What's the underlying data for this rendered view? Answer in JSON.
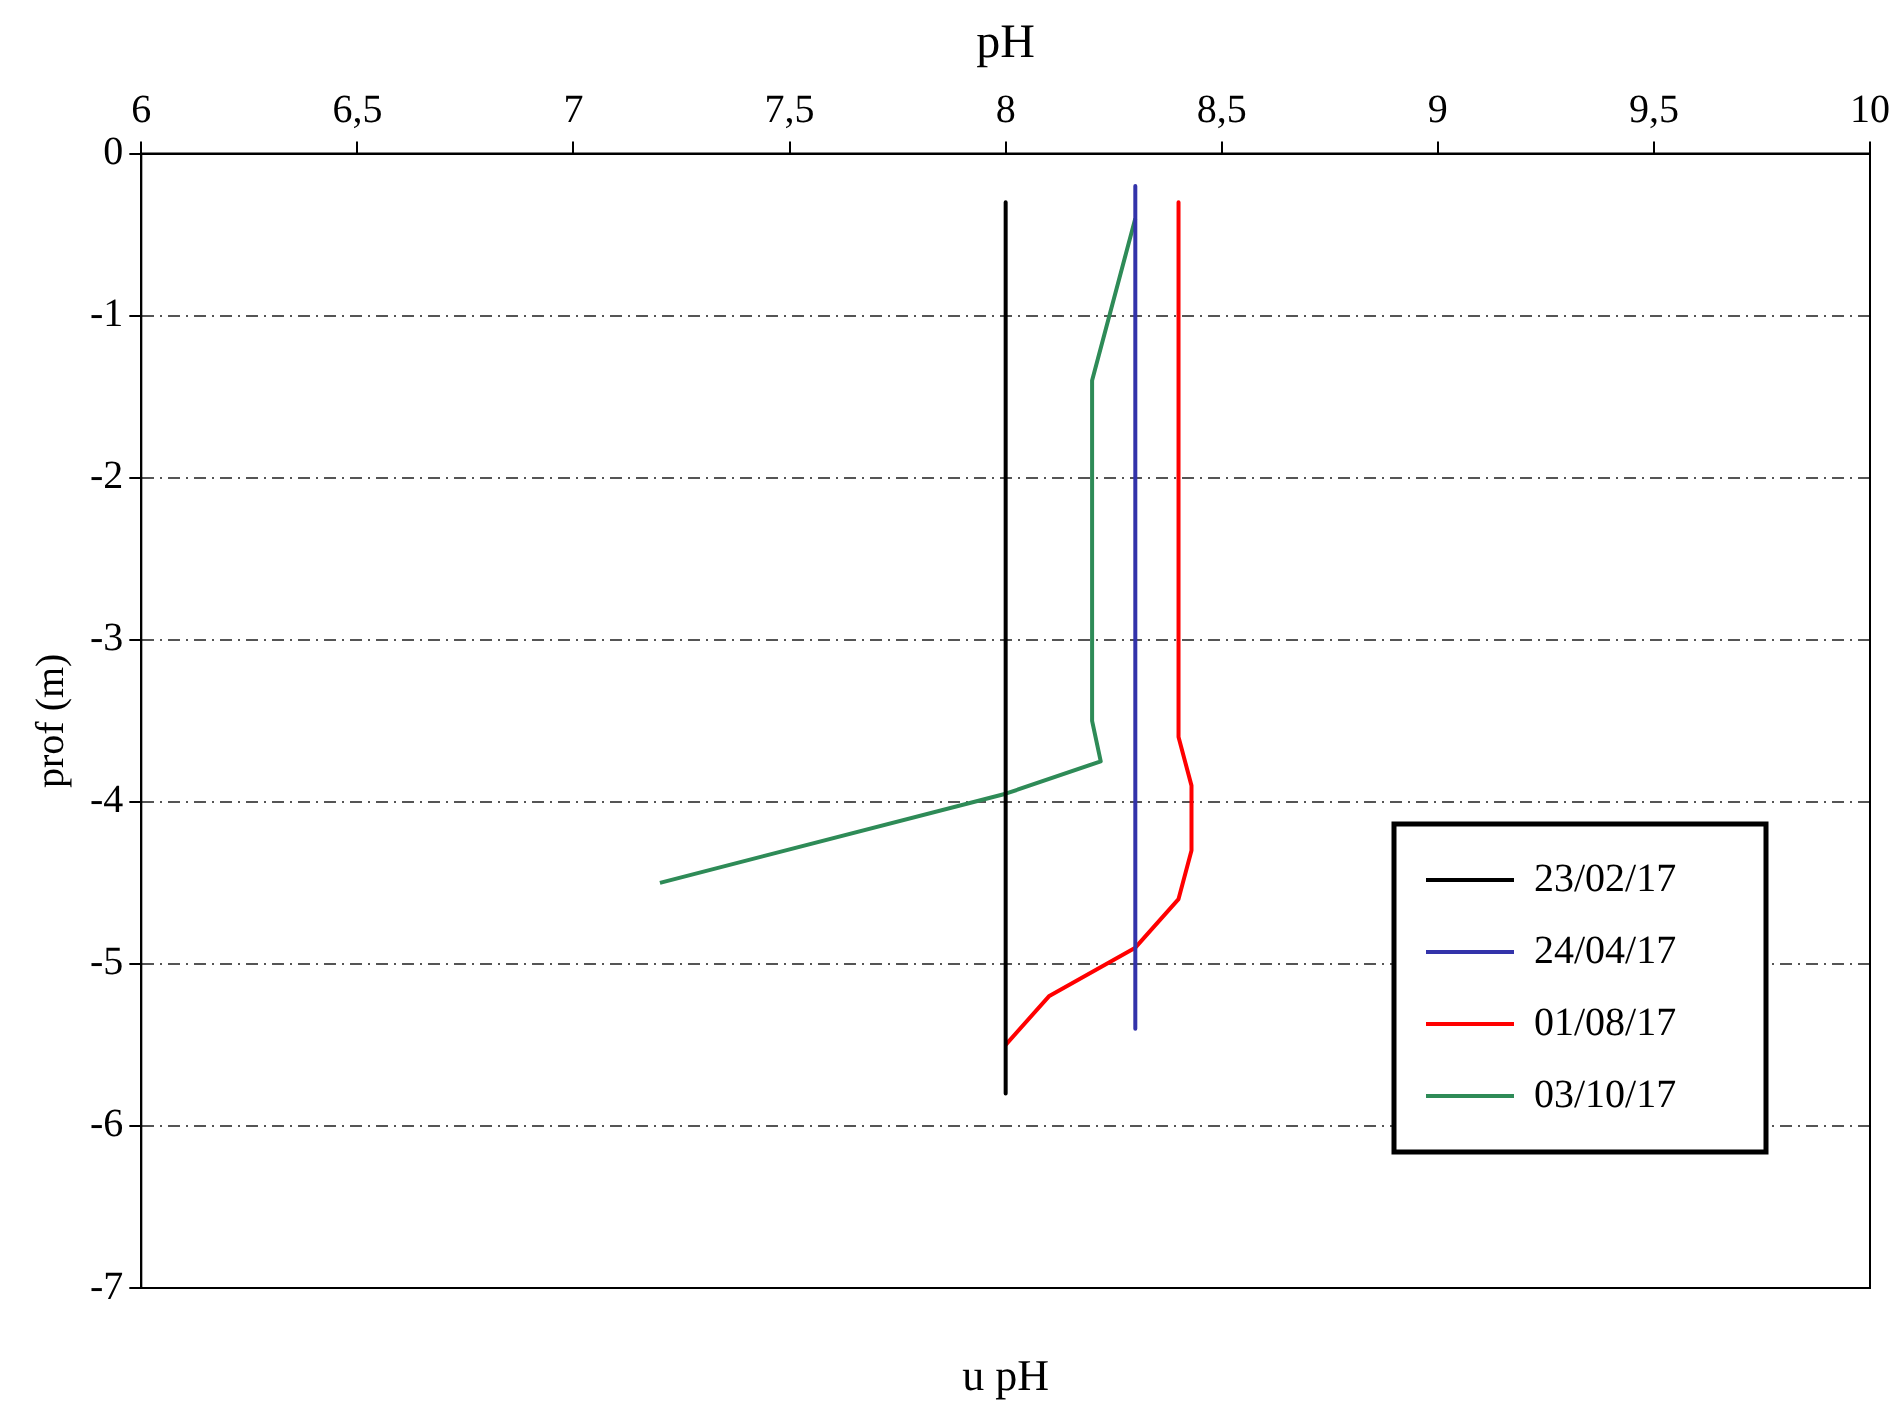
{
  "chart_data": {
    "type": "line",
    "xlabel": "pH",
    "ylabel": "prof (m)",
    "annotations": [
      "u pH"
    ],
    "xlim": [
      6,
      10
    ],
    "xticks": [
      6,
      {
        "value": 6.5,
        "label": "6,5"
      },
      7,
      {
        "value": 7.5,
        "label": "7,5"
      },
      8,
      {
        "value": 8.5,
        "label": "8,5"
      },
      9,
      {
        "value": 9.5,
        "label": "9,5"
      },
      10
    ],
    "ylim": [
      -7,
      0
    ],
    "yticks": [
      0,
      -1,
      -2,
      -3,
      -4,
      -5,
      -6,
      -7
    ],
    "grid": "y",
    "legend": "bottom right",
    "marker": "none",
    "line_style": "solid",
    "series": [
      {
        "name": "23/02/17",
        "color": "#000000",
        "x": [
          8,
          8
        ],
        "values": [
          -0.3,
          -5.8
        ]
      },
      {
        "name": "24/04/17",
        "color": "#3333aa",
        "x": [
          8.3,
          8.3
        ],
        "values": [
          -0.2,
          -5.4
        ]
      },
      {
        "name": "01/08/17",
        "color": "#ff0000",
        "x": [
          8.4,
          8.4,
          8.43,
          8.43,
          8.4,
          8.3,
          8.1,
          8.0
        ],
        "values": [
          -0.3,
          -3.6,
          -3.9,
          -4.3,
          -4.6,
          -4.9,
          -5.2,
          -5.5
        ]
      },
      {
        "name": "03/10/17",
        "color": "#2e8b57",
        "x": [
          8.3,
          8.2,
          8.2,
          8.22,
          8.0,
          7.2
        ],
        "values": [
          -0.4,
          -1.4,
          -3.5,
          -3.75,
          -3.95,
          -4.5
        ]
      }
    ]
  }
}
